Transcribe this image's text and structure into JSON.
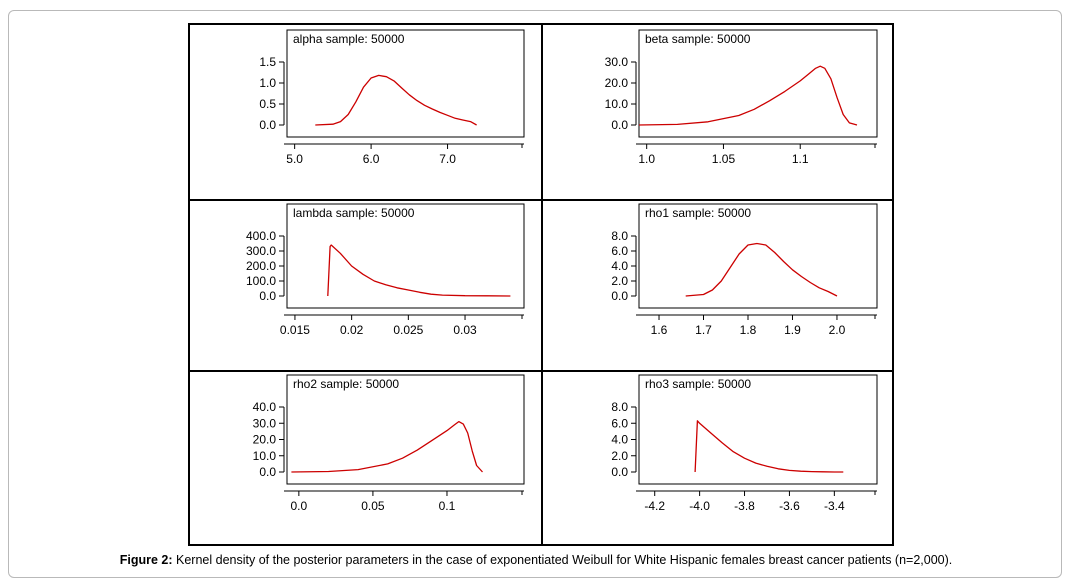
{
  "caption": {
    "label": "Figure 2:",
    "text": "Kernel density of the posterior parameters in the case of exponentiated Weibull for White Hispanic females breast cancer patients (n=2,000)."
  },
  "colors": {
    "curve": "#cc0000",
    "frame": "#000000"
  },
  "chart_data": [
    {
      "type": "line",
      "title": "alpha sample: 50000",
      "xticks": [
        "5.0",
        "6.0",
        "7.0"
      ],
      "yticks": [
        "0.0",
        "0.5",
        "1.0",
        "1.5"
      ],
      "xlim": [
        4.9,
        8.0
      ],
      "ylim": [
        0,
        1.5
      ],
      "x": [
        5.27,
        5.5,
        5.6,
        5.7,
        5.8,
        5.9,
        6.0,
        6.1,
        6.2,
        6.3,
        6.4,
        6.5,
        6.6,
        6.7,
        6.8,
        6.9,
        7.0,
        7.1,
        7.2,
        7.3,
        7.38
      ],
      "y": [
        0.0,
        0.02,
        0.08,
        0.25,
        0.55,
        0.9,
        1.12,
        1.18,
        1.15,
        1.05,
        0.88,
        0.72,
        0.58,
        0.47,
        0.38,
        0.3,
        0.23,
        0.16,
        0.12,
        0.08,
        0.0
      ]
    },
    {
      "type": "line",
      "title": "beta sample: 50000",
      "xticks": [
        "1.0",
        "1.05",
        "1.1"
      ],
      "yticks": [
        "0.0",
        "10.0",
        "20.0",
        "30.0"
      ],
      "xlim": [
        0.995,
        1.15
      ],
      "ylim": [
        0,
        30
      ],
      "x": [
        0.995,
        1.02,
        1.04,
        1.06,
        1.07,
        1.08,
        1.09,
        1.1,
        1.105,
        1.11,
        1.113,
        1.116,
        1.12,
        1.124,
        1.128,
        1.132,
        1.137
      ],
      "y": [
        0.0,
        0.3,
        1.5,
        4.5,
        7.5,
        11.5,
        16.0,
        21.0,
        24.0,
        27.0,
        28.0,
        27.0,
        22.0,
        13.0,
        5.0,
        1.0,
        0.0
      ]
    },
    {
      "type": "line",
      "title": "lambda sample: 50000",
      "xticks": [
        "0.015",
        "0.02",
        "0.025",
        "0.03"
      ],
      "yticks": [
        "0.0",
        "100.0",
        "200.0",
        "300.0",
        "400.0"
      ],
      "xlim": [
        0.0143,
        0.0352
      ],
      "ylim": [
        0,
        400
      ],
      "x": [
        0.0179,
        0.0181,
        0.0182,
        0.019,
        0.02,
        0.021,
        0.022,
        0.023,
        0.024,
        0.025,
        0.026,
        0.027,
        0.028,
        0.03,
        0.032,
        0.034
      ],
      "y": [
        0.0,
        330.0,
        340.0,
        285.0,
        200.0,
        145.0,
        100.0,
        75.0,
        55.0,
        40.0,
        25.0,
        12.0,
        6.0,
        2.0,
        1.0,
        0.0
      ]
    },
    {
      "type": "line",
      "title": "rho1 sample: 50000",
      "xticks": [
        "1.6",
        "1.7",
        "1.8",
        "1.9",
        "2.0"
      ],
      "yticks": [
        "0.0",
        "2.0",
        "4.0",
        "6.0",
        "8.0"
      ],
      "xlim": [
        1.555,
        2.09
      ],
      "ylim": [
        0,
        8
      ],
      "x": [
        1.66,
        1.7,
        1.72,
        1.74,
        1.76,
        1.78,
        1.8,
        1.82,
        1.84,
        1.86,
        1.88,
        1.9,
        1.92,
        1.94,
        1.96,
        1.98,
        2.0
      ],
      "y": [
        0.0,
        0.2,
        0.8,
        2.0,
        3.8,
        5.6,
        6.8,
        7.0,
        6.8,
        5.8,
        4.6,
        3.5,
        2.6,
        1.8,
        1.1,
        0.6,
        0.0
      ]
    },
    {
      "type": "line",
      "title": "rho2 sample: 50000",
      "xticks": [
        "0.0",
        "0.05",
        "0.1"
      ],
      "yticks": [
        "0.0",
        "10.0",
        "20.0",
        "30.0",
        "40.0"
      ],
      "xlim": [
        -0.008,
        0.152
      ],
      "ylim": [
        0,
        40
      ],
      "x": [
        -0.005,
        0.02,
        0.04,
        0.06,
        0.07,
        0.08,
        0.09,
        0.1,
        0.105,
        0.108,
        0.111,
        0.114,
        0.117,
        0.12,
        0.124
      ],
      "y": [
        0.0,
        0.3,
        1.5,
        5.0,
        8.5,
        13.5,
        19.5,
        25.5,
        29.0,
        31.0,
        29.5,
        24.0,
        13.0,
        4.0,
        0.0
      ]
    },
    {
      "type": "line",
      "title": "rho3 sample: 50000",
      "xticks": [
        "-4.2",
        "-4.0",
        "-3.8",
        "-3.6",
        "-3.4"
      ],
      "yticks": [
        "0.0",
        "2.0",
        "4.0",
        "6.0",
        "8.0"
      ],
      "xlim": [
        -4.27,
        -3.21
      ],
      "ylim": [
        0,
        8
      ],
      "x": [
        -4.02,
        -4.01,
        -4.0,
        -3.95,
        -3.9,
        -3.85,
        -3.8,
        -3.75,
        -3.7,
        -3.65,
        -3.6,
        -3.55,
        -3.5,
        -3.45,
        -3.4,
        -3.36
      ],
      "y": [
        0.0,
        6.3,
        6.0,
        4.8,
        3.6,
        2.5,
        1.7,
        1.1,
        0.7,
        0.4,
        0.2,
        0.1,
        0.05,
        0.02,
        0.0,
        0.0
      ]
    }
  ]
}
